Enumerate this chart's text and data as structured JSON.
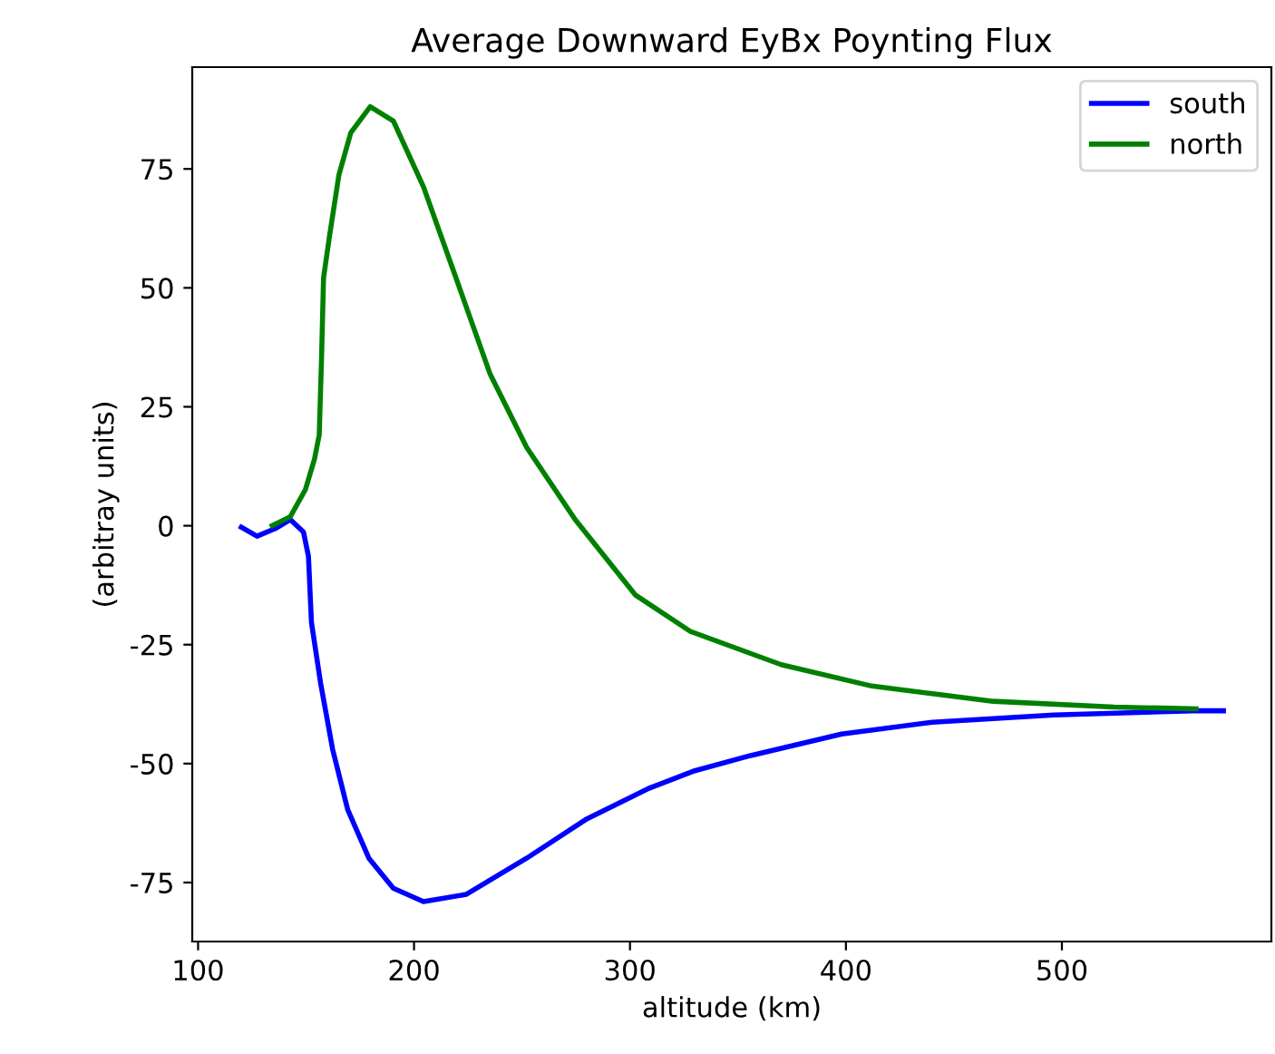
{
  "chart_data": {
    "type": "line",
    "title": "Average Downward EyBx Poynting Flux",
    "xlabel": "altitude (km)",
    "ylabel": "(arbitray units)",
    "xlim": [
      97.3,
      597
    ],
    "ylim": [
      -87.4,
      96.4
    ],
    "xticks": [
      100,
      200,
      300,
      400,
      500
    ],
    "yticks": [
      -75,
      -50,
      -25,
      0,
      25,
      50,
      75
    ],
    "grid": false,
    "legend": "top right",
    "series": [
      {
        "name": "south",
        "color": "#0000ff",
        "x": [
          120,
          127.3,
          135.7,
          142.7,
          148.8,
          151.1,
          152.5,
          156.7,
          162.3,
          169.3,
          179.1,
          190.4,
          204.4,
          224.1,
          252.1,
          280.1,
          308.2,
          330,
          355.9,
          398,
          440,
          496.2,
          560.8,
          574.8
        ],
        "values": [
          -0.3,
          -2.2,
          -0.6,
          1.3,
          -1.3,
          -6.4,
          -20.3,
          -33,
          -47,
          -59.7,
          -69.9,
          -76.2,
          -79,
          -77.5,
          -69.9,
          -61.6,
          -55.3,
          -51.5,
          -48.3,
          -43.8,
          -41.3,
          -39.8,
          -38.9,
          -38.9
        ]
      },
      {
        "name": "north",
        "color": "#008000",
        "x": [
          134.3,
          142.7,
          149.7,
          153.9,
          156.1,
          157.2,
          158.1,
          160.9,
          165.2,
          170.7,
          179.7,
          190.4,
          204.4,
          218.4,
          235.3,
          252.1,
          274.6,
          302.6,
          327.9,
          370,
          412,
          468.2,
          524.2,
          562.1
        ],
        "values": [
          0,
          1.9,
          7.6,
          14,
          19.1,
          35.6,
          52.1,
          61,
          73.7,
          82.6,
          88.1,
          85.1,
          71.2,
          53.4,
          31.8,
          16.5,
          1.3,
          -14.6,
          -22.2,
          -29.2,
          -33.7,
          -36.9,
          -38.1,
          -38.5
        ]
      }
    ]
  }
}
